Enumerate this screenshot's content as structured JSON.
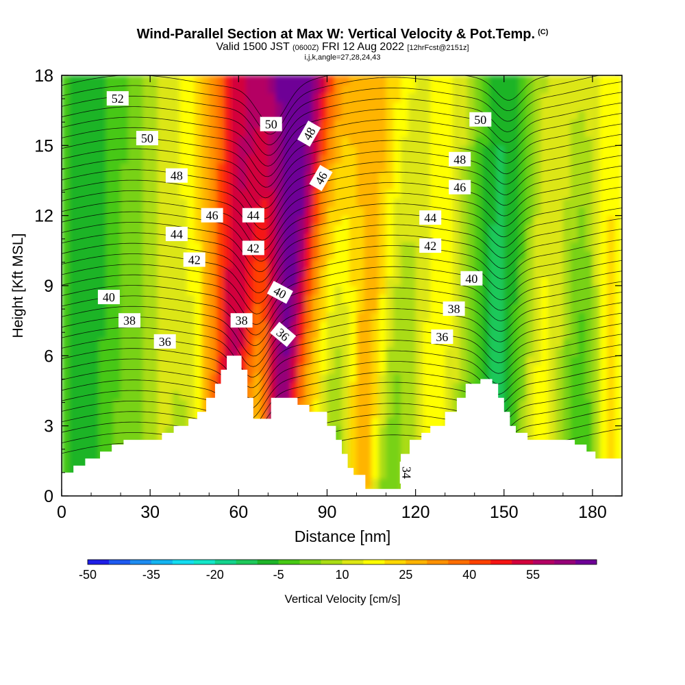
{
  "title": {
    "main": "Wind-Parallel Section at Max W: Vertical Velocity & Pot.Temp.",
    "tag": "(C)",
    "valid_prefix": "Valid 1500 JST",
    "valid_zulu": "(0600Z)",
    "valid_date": "FRI 12 Aug 2022",
    "forecast": "[12hrFcst@2151z]",
    "indices": "i,j,k,angle=27,28,24,43"
  },
  "chart_data": {
    "type": "heatmap",
    "xlabel": "Distance [nm]",
    "ylabel": "Height [Kft MSL]",
    "xlim": [
      0,
      190
    ],
    "ylim": [
      0,
      18
    ],
    "x_ticks": [
      0,
      30,
      60,
      90,
      120,
      150,
      180
    ],
    "y_ticks": [
      0,
      3,
      6,
      9,
      12,
      15,
      18
    ],
    "grid": false,
    "colorbar": {
      "label": "Vertical Velocity [cm/s]",
      "min": -50,
      "max": 65,
      "step": 5,
      "tick_labels": [
        -50,
        -35,
        -20,
        -5,
        10,
        25,
        40,
        55
      ],
      "colors": [
        "#1e1ee6",
        "#1e5af0",
        "#1e8cf0",
        "#14b4f0",
        "#14dcf0",
        "#14e6c8",
        "#14d28c",
        "#1ec85a",
        "#1eb428",
        "#46c814",
        "#78d214",
        "#aadc14",
        "#dce614",
        "#ffff00",
        "#ffd700",
        "#ffb400",
        "#ff9100",
        "#ff6e00",
        "#ff4100",
        "#f51414",
        "#d2003c",
        "#b40064",
        "#960078",
        "#6e0096"
      ]
    },
    "terrain_kft": [
      [
        0,
        1.0
      ],
      [
        4,
        1.0
      ],
      [
        4,
        1.3
      ],
      [
        8,
        1.3
      ],
      [
        8,
        1.6
      ],
      [
        13,
        1.6
      ],
      [
        13,
        1.9
      ],
      [
        17,
        1.9
      ],
      [
        17,
        2.2
      ],
      [
        21,
        2.2
      ],
      [
        21,
        2.4
      ],
      [
        34,
        2.4
      ],
      [
        34,
        2.7
      ],
      [
        38,
        2.7
      ],
      [
        38,
        3.0
      ],
      [
        43,
        3.0
      ],
      [
        43,
        3.3
      ],
      [
        46,
        3.3
      ],
      [
        46,
        3.6
      ],
      [
        49,
        3.6
      ],
      [
        49,
        4.2
      ],
      [
        52,
        4.2
      ],
      [
        52,
        4.8
      ],
      [
        54,
        4.8
      ],
      [
        54,
        5.4
      ],
      [
        56,
        5.4
      ],
      [
        56,
        6.0
      ],
      [
        61,
        6.0
      ],
      [
        61,
        5.4
      ],
      [
        63,
        5.4
      ],
      [
        63,
        4.2
      ],
      [
        65,
        4.2
      ],
      [
        65,
        3.3
      ],
      [
        71,
        3.3
      ],
      [
        71,
        4.2
      ],
      [
        80,
        4.2
      ],
      [
        80,
        3.9
      ],
      [
        84,
        3.9
      ],
      [
        84,
        3.6
      ],
      [
        90,
        3.6
      ],
      [
        90,
        3.0
      ],
      [
        93,
        3.0
      ],
      [
        93,
        2.4
      ],
      [
        95,
        2.4
      ],
      [
        95,
        1.8
      ],
      [
        97,
        1.8
      ],
      [
        97,
        1.2
      ],
      [
        99,
        1.2
      ],
      [
        99,
        0.9
      ],
      [
        103,
        0.9
      ],
      [
        103,
        0.3
      ],
      [
        115,
        0.3
      ],
      [
        115,
        1.8
      ],
      [
        118,
        1.8
      ],
      [
        118,
        2.4
      ],
      [
        122,
        2.4
      ],
      [
        122,
        2.7
      ],
      [
        125,
        2.7
      ],
      [
        125,
        3.0
      ],
      [
        130,
        3.0
      ],
      [
        130,
        3.6
      ],
      [
        134,
        3.6
      ],
      [
        134,
        4.2
      ],
      [
        137,
        4.2
      ],
      [
        137,
        4.8
      ],
      [
        142,
        4.8
      ],
      [
        142,
        5.0
      ],
      [
        146,
        5.0
      ],
      [
        146,
        4.8
      ],
      [
        148,
        4.8
      ],
      [
        148,
        4.2
      ],
      [
        150,
        4.2
      ],
      [
        150,
        3.6
      ],
      [
        152,
        3.6
      ],
      [
        152,
        3.0
      ],
      [
        154,
        3.0
      ],
      [
        154,
        2.7
      ],
      [
        158,
        2.7
      ],
      [
        158,
        2.4
      ],
      [
        174,
        2.4
      ],
      [
        174,
        2.2
      ],
      [
        178,
        2.2
      ],
      [
        178,
        1.9
      ],
      [
        181,
        1.9
      ],
      [
        181,
        1.6
      ],
      [
        190,
        1.6
      ]
    ],
    "theta_labels": [
      {
        "text": "52",
        "x": 19,
        "y": 17.0,
        "angle": 0
      },
      {
        "text": "50",
        "x": 29,
        "y": 15.3,
        "angle": 0
      },
      {
        "text": "48",
        "x": 39,
        "y": 13.7,
        "angle": 0
      },
      {
        "text": "46",
        "x": 51,
        "y": 12.0,
        "angle": 0
      },
      {
        "text": "44",
        "x": 39,
        "y": 11.2,
        "angle": 0
      },
      {
        "text": "42",
        "x": 45,
        "y": 10.1,
        "angle": 0
      },
      {
        "text": "40",
        "x": 16,
        "y": 8.5,
        "angle": 0
      },
      {
        "text": "38",
        "x": 23,
        "y": 7.5,
        "angle": 0
      },
      {
        "text": "36",
        "x": 35,
        "y": 6.6,
        "angle": 0
      },
      {
        "text": "44",
        "x": 65,
        "y": 12.0,
        "angle": 0
      },
      {
        "text": "42",
        "x": 65,
        "y": 10.6,
        "angle": 0
      },
      {
        "text": "38",
        "x": 61,
        "y": 7.5,
        "angle": 0
      },
      {
        "text": "50",
        "x": 71,
        "y": 15.9,
        "angle": 0
      },
      {
        "text": "48",
        "x": 84,
        "y": 15.5,
        "angle": -60
      },
      {
        "text": "46",
        "x": 88,
        "y": 13.6,
        "angle": -60
      },
      {
        "text": "40",
        "x": 74,
        "y": 8.7,
        "angle": 28
      },
      {
        "text": "36",
        "x": 75,
        "y": 6.9,
        "angle": 40
      },
      {
        "text": "50",
        "x": 142,
        "y": 16.1,
        "angle": 0
      },
      {
        "text": "48",
        "x": 135,
        "y": 14.4,
        "angle": 0
      },
      {
        "text": "46",
        "x": 135,
        "y": 13.2,
        "angle": 0
      },
      {
        "text": "44",
        "x": 125,
        "y": 11.9,
        "angle": 0
      },
      {
        "text": "42",
        "x": 125,
        "y": 10.7,
        "angle": 0
      },
      {
        "text": "40",
        "x": 139,
        "y": 9.3,
        "angle": 0
      },
      {
        "text": "38",
        "x": 133,
        "y": 8.0,
        "angle": 0
      },
      {
        "text": "36",
        "x": 129,
        "y": 6.8,
        "angle": 0
      },
      {
        "text": "34",
        "x": 117,
        "y": 1.0,
        "angle": 90
      }
    ]
  }
}
